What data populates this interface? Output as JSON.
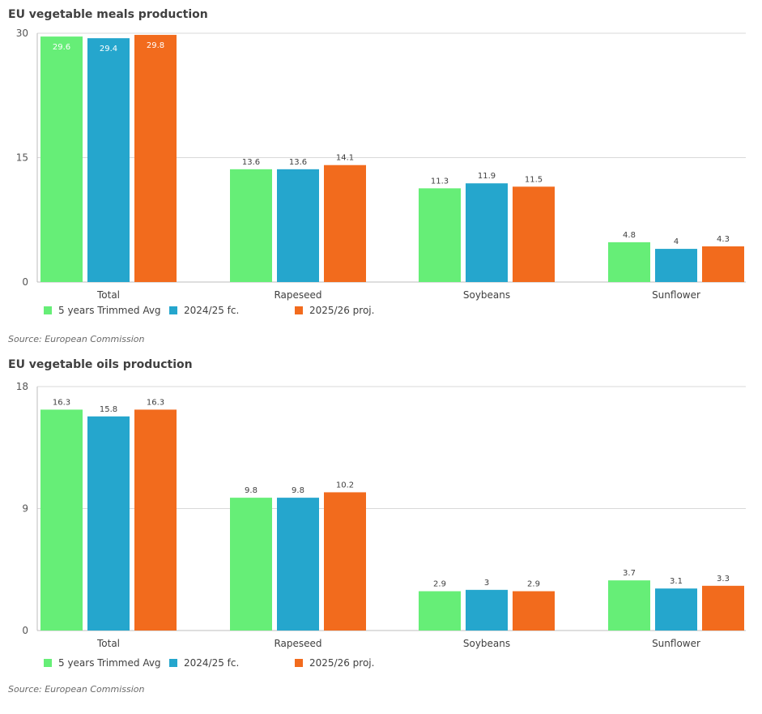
{
  "chart_data": [
    {
      "type": "bar",
      "title": "EU vegetable meals production",
      "categories": [
        "Total",
        "Rapeseed",
        "Soybeans",
        "Sunflower"
      ],
      "series": [
        {
          "name": "5 years Trimmed Avg",
          "color": "#66ee77",
          "values": [
            29.6,
            13.6,
            11.3,
            4.8
          ]
        },
        {
          "name": "2024/25 fc.",
          "color": "#25a6cd",
          "values": [
            29.4,
            13.6,
            11.9,
            4
          ]
        },
        {
          "name": "2025/26 proj.",
          "color": "#f26b1d",
          "values": [
            29.8,
            14.1,
            11.5,
            4.3
          ]
        }
      ],
      "yticks": [
        "0",
        "15",
        "30"
      ],
      "ylim": [
        0,
        30
      ],
      "grid": true,
      "legend": "bottom-left",
      "source": "Source: European Commission"
    },
    {
      "type": "bar",
      "title": "EU vegetable oils production",
      "categories": [
        "Total",
        "Rapeseed",
        "Soybeans",
        "Sunflower"
      ],
      "series": [
        {
          "name": "5 years Trimmed Avg",
          "color": "#66ee77",
          "values": [
            16.3,
            9.8,
            2.9,
            3.7
          ]
        },
        {
          "name": "2024/25 fc.",
          "color": "#25a6cd",
          "values": [
            15.8,
            9.8,
            3,
            3.1
          ]
        },
        {
          "name": "2025/26 proj.",
          "color": "#f26b1d",
          "values": [
            16.3,
            10.2,
            2.9,
            3.3
          ]
        }
      ],
      "yticks": [
        "0",
        "9",
        "18"
      ],
      "ylim": [
        0,
        18
      ],
      "grid": true,
      "legend": "bottom-left",
      "source": "Source: European Commission"
    }
  ]
}
